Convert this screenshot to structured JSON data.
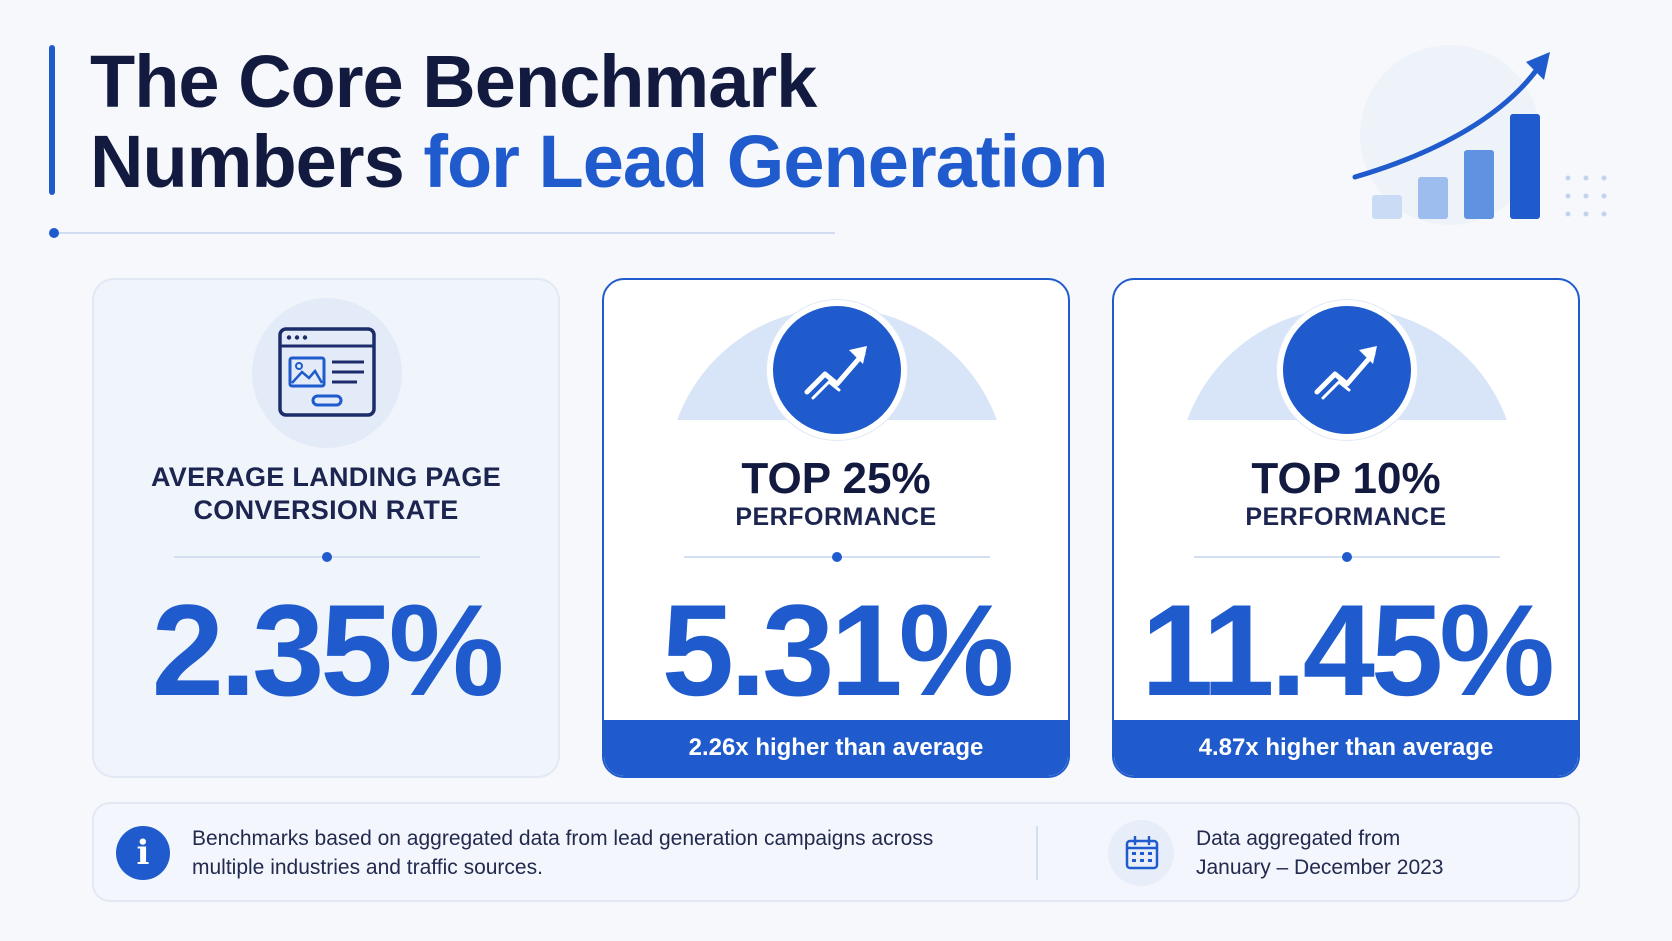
{
  "header": {
    "title_line1": "The Core Benchmark",
    "title_line2_plain": "Numbers ",
    "title_line2_accent": "for Lead Generation"
  },
  "cards": [
    {
      "label_line1": "AVERAGE LANDING PAGE",
      "label_line2": "CONVERSION RATE",
      "value": "2.35%",
      "icon": "browser-window-icon"
    },
    {
      "label_big": "TOP 25%",
      "label_sub": "PERFORMANCE",
      "value": "5.31%",
      "footer": "2.26x higher than average",
      "icon": "trending-up-icon"
    },
    {
      "label_big": "TOP 10%",
      "label_sub": "PERFORMANCE",
      "value": "11.45%",
      "footer": "4.87x higher than average",
      "icon": "trending-up-icon"
    }
  ],
  "note": {
    "text": "Benchmarks based on aggregated data from lead generation campaigns across multiple industries and traffic sources.",
    "date_line1": "Data aggregated from",
    "date_line2": "January – December 2023",
    "info_icon": "info-icon",
    "calendar_icon": "calendar-icon"
  },
  "colors": {
    "accent": "#1f5bcc",
    "dark": "#131a40",
    "light_blue": "#d8e5f8",
    "background": "#f7f8fb"
  }
}
